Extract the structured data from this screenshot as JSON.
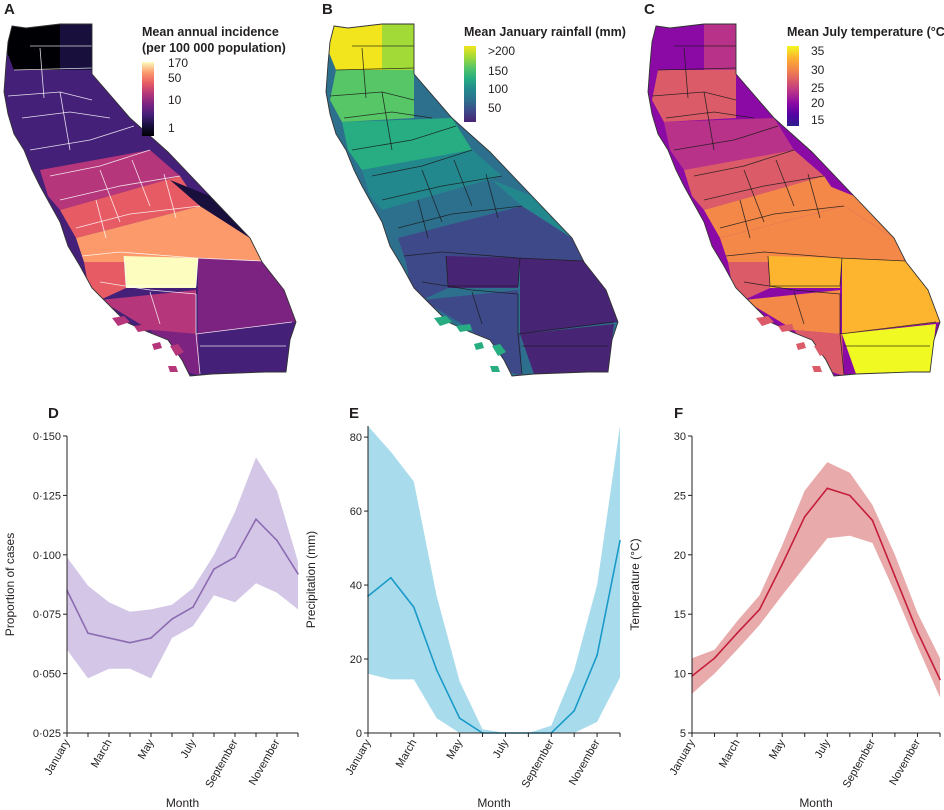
{
  "panel_labels": [
    "A",
    "B",
    "C",
    "D",
    "E",
    "F"
  ],
  "maps": [
    {
      "title_lines": [
        "Mean annual incidence",
        "(per 100 000 population)"
      ],
      "legend_ticks": [
        "170",
        "50",
        "10",
        "1"
      ],
      "colors": [
        "#fcfdbf",
        "#fc9a6b",
        "#e75c64",
        "#b5367a",
        "#7c2382",
        "#452078",
        "#180f3d",
        "#000004"
      ],
      "boundary_color": "#ffffff"
    },
    {
      "title_lines": [
        "Mean January rainfall (mm)"
      ],
      "legend_ticks": [
        ">200",
        "150",
        "100",
        "50"
      ],
      "colors": [
        "#f2e51d",
        "#a2da37",
        "#56c667",
        "#27ad81",
        "#23888e",
        "#2d708e",
        "#3e4989",
        "#482475"
      ],
      "boundary_color": "#1a1a1a"
    },
    {
      "title_lines": [
        "Mean July temperature (°C)"
      ],
      "legend_ticks": [
        "35",
        "30",
        "25",
        "20",
        "15"
      ],
      "colors": [
        "#f0f921",
        "#fdb42f",
        "#f48849",
        "#db5c68",
        "#b83289",
        "#8b0aa5",
        "#5402a3",
        "#2c1d8c"
      ],
      "boundary_color": "#1a1a1a"
    }
  ],
  "chart_data": [
    {
      "type": "line",
      "x": [
        "January",
        "February",
        "March",
        "April",
        "May",
        "June",
        "July",
        "August",
        "September",
        "October",
        "November",
        "December"
      ],
      "x_tick_labels": [
        "January",
        "March",
        "May",
        "July",
        "September",
        "November"
      ],
      "values": [
        0.085,
        0.067,
        0.065,
        0.063,
        0.065,
        0.073,
        0.078,
        0.094,
        0.099,
        0.115,
        0.106,
        0.092
      ],
      "band_lower": [
        0.06,
        0.048,
        0.052,
        0.052,
        0.048,
        0.065,
        0.07,
        0.083,
        0.08,
        0.088,
        0.084,
        0.077
      ],
      "band_upper": [
        0.099,
        0.087,
        0.08,
        0.076,
        0.077,
        0.079,
        0.086,
        0.1,
        0.118,
        0.141,
        0.127,
        0.097
      ],
      "ylim": [
        0.025,
        0.15
      ],
      "y_ticks": [
        "0·025",
        "0·050",
        "0·075",
        "0·100",
        "0·125",
        "0·150"
      ],
      "xlabel": "Month",
      "ylabel": "Proportion of cases",
      "line_color": "#8c6bb1",
      "band_color": "#d3c6e6"
    },
    {
      "type": "line",
      "x": [
        "January",
        "February",
        "March",
        "April",
        "May",
        "June",
        "July",
        "August",
        "September",
        "October",
        "November",
        "December"
      ],
      "x_tick_labels": [
        "January",
        "March",
        "May",
        "July",
        "September",
        "November"
      ],
      "values": [
        37,
        42,
        34,
        17,
        4,
        0,
        0,
        0,
        0,
        6,
        21,
        52
      ],
      "band_lower": [
        16,
        14.5,
        14.5,
        4,
        0,
        0,
        0,
        0,
        0,
        0,
        3,
        15
      ],
      "band_upper": [
        83,
        76,
        68,
        37,
        14,
        1,
        0,
        0,
        2,
        17,
        40,
        83
      ],
      "ylim": [
        0,
        83
      ],
      "y_ticks": [
        "0",
        "20",
        "40",
        "60",
        "80"
      ],
      "xlabel": "Month",
      "ylabel": "Precipitation (mm)",
      "line_color": "#1b9ac9",
      "band_color": "#a8dced"
    },
    {
      "type": "line",
      "x": [
        "January",
        "February",
        "March",
        "April",
        "May",
        "June",
        "July",
        "August",
        "September",
        "October",
        "November",
        "December"
      ],
      "x_tick_labels": [
        "January",
        "March",
        "May",
        "July",
        "September",
        "November"
      ],
      "values": [
        9.8,
        11.3,
        13.4,
        15.4,
        19.2,
        23.2,
        25.6,
        25.0,
        22.9,
        18.2,
        13.5,
        9.5
      ],
      "band_lower": [
        8.3,
        10.0,
        12.0,
        14.1,
        16.6,
        19.0,
        21.4,
        21.6,
        21.0,
        16.8,
        12.3,
        8.0
      ],
      "band_upper": [
        11.3,
        12.0,
        14.4,
        16.6,
        20.8,
        25.4,
        27.8,
        26.9,
        24.2,
        20.0,
        15.1,
        11.3
      ],
      "ylim": [
        5,
        30
      ],
      "y_ticks": [
        "5",
        "10",
        "15",
        "20",
        "25",
        "30"
      ],
      "xlabel": "Month",
      "ylabel": "Temperature (°C)",
      "line_color": "#c41e3a",
      "band_color": "#e8aaaa"
    }
  ]
}
